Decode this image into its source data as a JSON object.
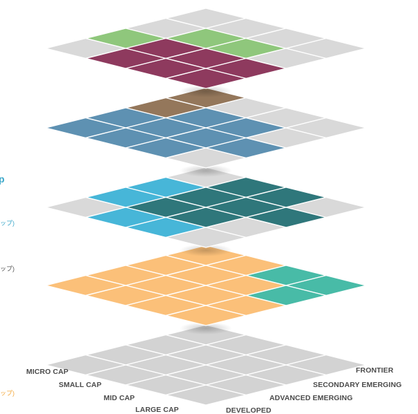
{
  "left_side_fragments": {
    "title_fragment": "p",
    "teal_fragment": "ップ)",
    "orange_fragment": "ップ)",
    "bottom_fragment": "ップ)"
  },
  "base_grid": {
    "left_axis_labels": [
      "MICRO CAP",
      "SMALL CAP",
      "MID CAP",
      "LARGE CAP"
    ],
    "right_axis_labels": [
      "DEVELOPED",
      "ADVANCED EMERGING",
      "SECONDARY EMERGING",
      "FRONTIER"
    ]
  },
  "colors": {
    "empty_cell": "#d9d9d9",
    "base_cell": "#d3d3d3",
    "green": "#8fc77c",
    "magenta": "#8e3a5e",
    "brown": "#94775b",
    "steel_blue": "#5e91b2",
    "dark_teal": "#2f777b",
    "sky_blue": "#47b6d8",
    "orange": "#fbc079",
    "turquoise": "#48bba7",
    "grid_line": "#ffffff"
  },
  "layers": [
    {
      "name": "top-layer",
      "cells": [
        [
          "empty",
          "empty",
          "empty",
          "empty"
        ],
        [
          "empty",
          "green",
          "green",
          "empty"
        ],
        [
          "green",
          "magenta",
          "magenta",
          "magenta"
        ],
        [
          "empty",
          "magenta",
          "magenta",
          "magenta"
        ]
      ]
    },
    {
      "name": "second-layer",
      "cells": [
        [
          "brown",
          "empty",
          "empty",
          "empty"
        ],
        [
          "brown",
          "steel_blue",
          "steel_blue",
          "empty"
        ],
        [
          "steel_blue",
          "steel_blue",
          "steel_blue",
          "steel_blue"
        ],
        [
          "steel_blue",
          "steel_blue",
          "steel_blue",
          "empty"
        ]
      ]
    },
    {
      "name": "third-layer",
      "cells": [
        [
          "empty",
          "dark_teal",
          "dark_teal",
          "empty"
        ],
        [
          "sky_blue",
          "dark_teal",
          "dark_teal",
          "dark_teal"
        ],
        [
          "sky_blue",
          "dark_teal",
          "dark_teal",
          "empty"
        ],
        [
          "empty",
          "sky_blue",
          "sky_blue",
          "empty"
        ]
      ]
    },
    {
      "name": "fourth-layer",
      "cells": [
        [
          "orange",
          "orange",
          "turquoise",
          "turquoise"
        ],
        [
          "orange",
          "orange",
          "orange",
          "turquoise"
        ],
        [
          "orange",
          "orange",
          "orange",
          "orange"
        ],
        [
          "orange",
          "orange",
          "orange",
          "orange"
        ]
      ]
    },
    {
      "name": "base-layer",
      "cells": [
        [
          "base",
          "base",
          "base",
          "base"
        ],
        [
          "base",
          "base",
          "base",
          "base"
        ],
        [
          "base",
          "base",
          "base",
          "base"
        ],
        [
          "base",
          "base",
          "base",
          "base"
        ]
      ]
    }
  ]
}
